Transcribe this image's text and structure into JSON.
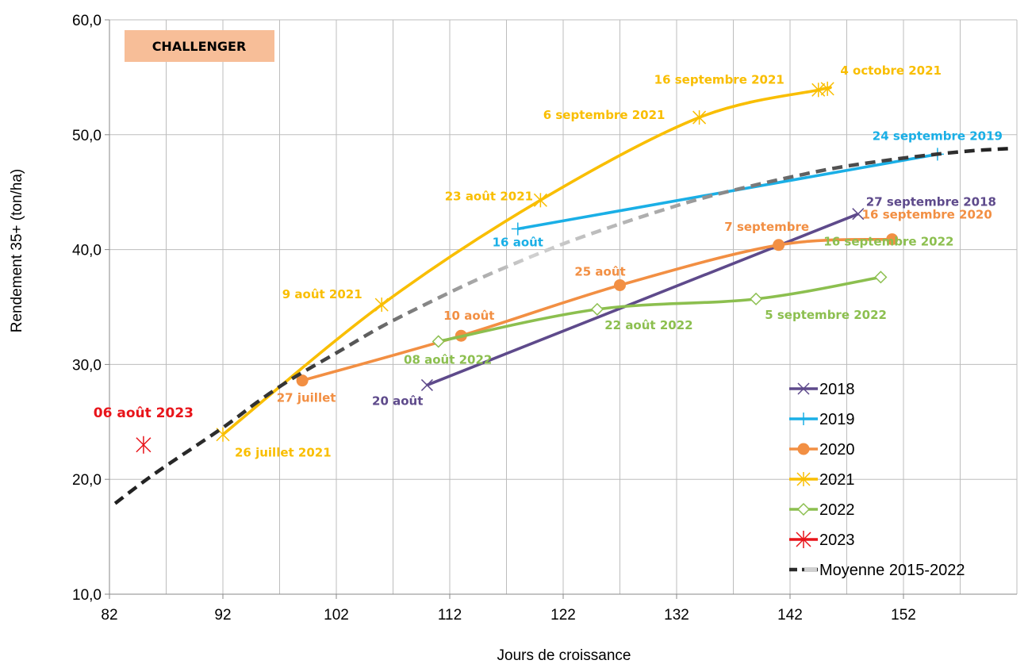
{
  "chart_data": {
    "type": "line",
    "title": "",
    "badge": "CHALLENGER",
    "xlabel": "Jours de croissance",
    "ylabel": "Rendement 35+ (ton/ha)",
    "xlim": [
      82,
      162
    ],
    "ylim": [
      10,
      60
    ],
    "xticks": [
      82,
      92,
      102,
      112,
      122,
      132,
      142,
      152
    ],
    "xtick_labels": [
      "82",
      "92",
      "102",
      "112",
      "122",
      "132",
      "142",
      "152"
    ],
    "yticks": [
      10,
      20,
      30,
      40,
      50,
      60
    ],
    "ytick_labels": [
      "10,0",
      "20,0",
      "30,0",
      "40,0",
      "50,0",
      "60,0"
    ],
    "grid": "both",
    "legend_position": "bottom-right",
    "series": [
      {
        "name": "2018",
        "color": "#5E4A8B",
        "marker": "x",
        "points": [
          [
            110,
            28.2
          ],
          [
            148,
            43.1
          ]
        ],
        "labels": [
          {
            "text": "20 août",
            "x": 110,
            "y": 28.2
          },
          {
            "text": "27 septembre 2018",
            "x": 148,
            "y": 43.1
          }
        ]
      },
      {
        "name": "2019",
        "color": "#1AAFE6",
        "marker": "plus",
        "points": [
          [
            118,
            41.8
          ],
          [
            155,
            48.3
          ]
        ],
        "labels": [
          {
            "text": "16 août",
            "x": 118,
            "y": 41.8
          },
          {
            "text": "24 septembre 2019",
            "x": 155,
            "y": 48.3
          }
        ]
      },
      {
        "name": "2020",
        "color": "#F28F43",
        "marker": "circle",
        "points": [
          [
            99,
            28.6
          ],
          [
            113,
            32.5
          ],
          [
            127,
            36.9
          ],
          [
            141,
            40.4
          ],
          [
            151,
            40.9
          ]
        ],
        "labels": [
          {
            "text": "27 juillet",
            "x": 99,
            "y": 28.6
          },
          {
            "text": "10 août",
            "x": 113,
            "y": 32.5
          },
          {
            "text": "25 août",
            "x": 127,
            "y": 36.9
          },
          {
            "text": "7 septembre",
            "x": 141,
            "y": 40.4
          },
          {
            "text": "16 septembre 2020",
            "x": 151,
            "y": 40.9
          }
        ]
      },
      {
        "name": "2021",
        "color": "#F9BE00",
        "marker": "star",
        "points": [
          [
            92,
            23.9
          ],
          [
            106,
            35.2
          ],
          [
            120,
            44.3
          ],
          [
            134,
            51.5
          ],
          [
            144.5,
            53.9
          ],
          [
            145.3,
            54.0
          ]
        ],
        "labels": [
          {
            "text": "26 juillet 2021",
            "x": 92,
            "y": 23.9
          },
          {
            "text": "9 août 2021",
            "x": 106,
            "y": 35.2
          },
          {
            "text": "23 août 2021",
            "x": 120,
            "y": 44.3
          },
          {
            "text": "6 septembre 2021",
            "x": 134,
            "y": 51.5
          },
          {
            "text": "16 septembre 2021",
            "x": 144.5,
            "y": 53.9
          },
          {
            "text": "4 octobre 2021",
            "x": 145.3,
            "y": 54.0
          }
        ]
      },
      {
        "name": "2022",
        "color": "#8CBF4F",
        "marker": "diamond",
        "points": [
          [
            111,
            32.0
          ],
          [
            125,
            34.8
          ],
          [
            139,
            35.7
          ],
          [
            150,
            37.6
          ]
        ],
        "labels": [
          {
            "text": "08 août 2022",
            "x": 111,
            "y": 32.0
          },
          {
            "text": "22 août 2022",
            "x": 125,
            "y": 34.8
          },
          {
            "text": "5 septembre 2022",
            "x": 139,
            "y": 35.7
          },
          {
            "text": "16 septembre 2022",
            "x": 150,
            "y": 37.6
          }
        ]
      },
      {
        "name": "2023",
        "color": "#E8141A",
        "marker": "asterisk",
        "points": [
          [
            85,
            23.0
          ]
        ],
        "labels": [
          {
            "text": "06 août 2023",
            "x": 85,
            "y": 23.0
          }
        ]
      },
      {
        "name": "Moyenne 2015-2022",
        "color": "#2B2B2B",
        "marker": "none",
        "dashed": true,
        "gradient": true,
        "points": [
          [
            82.5,
            17.9
          ],
          [
            86,
            20.5
          ],
          [
            92,
            24.5
          ],
          [
            95,
            26.7
          ],
          [
            98,
            28.7
          ],
          [
            102,
            31.0
          ],
          [
            106,
            33.3
          ],
          [
            110,
            35.3
          ],
          [
            114,
            37.2
          ],
          [
            118,
            38.9
          ],
          [
            122,
            40.5
          ],
          [
            126,
            41.9
          ],
          [
            130,
            43.2
          ],
          [
            134,
            44.4
          ],
          [
            138,
            45.4
          ],
          [
            142,
            46.3
          ],
          [
            146,
            47.1
          ],
          [
            150,
            47.7
          ],
          [
            154,
            48.2
          ],
          [
            158,
            48.6
          ],
          [
            161.5,
            48.8
          ]
        ],
        "labels": []
      }
    ]
  }
}
